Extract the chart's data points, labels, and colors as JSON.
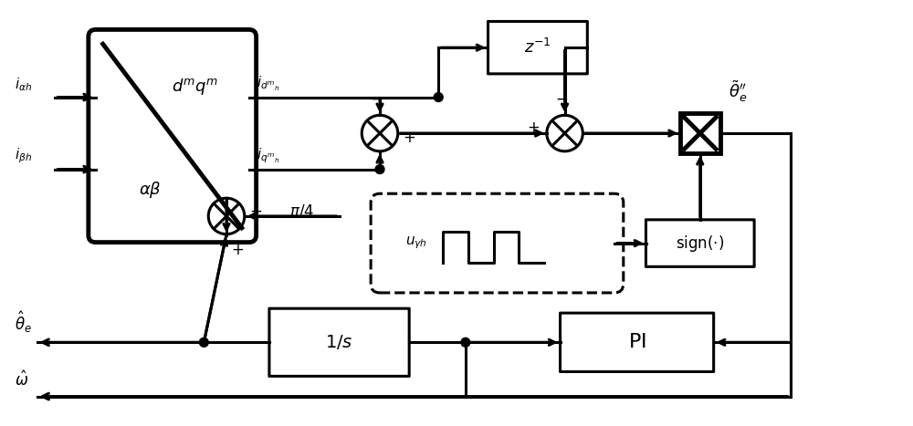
{
  "bg_color": "#ffffff",
  "line_color": "#000000",
  "lw": 2.2,
  "lw_thick": 3.5,
  "fig_width": 10.0,
  "fig_height": 4.67,
  "dpi": 100
}
